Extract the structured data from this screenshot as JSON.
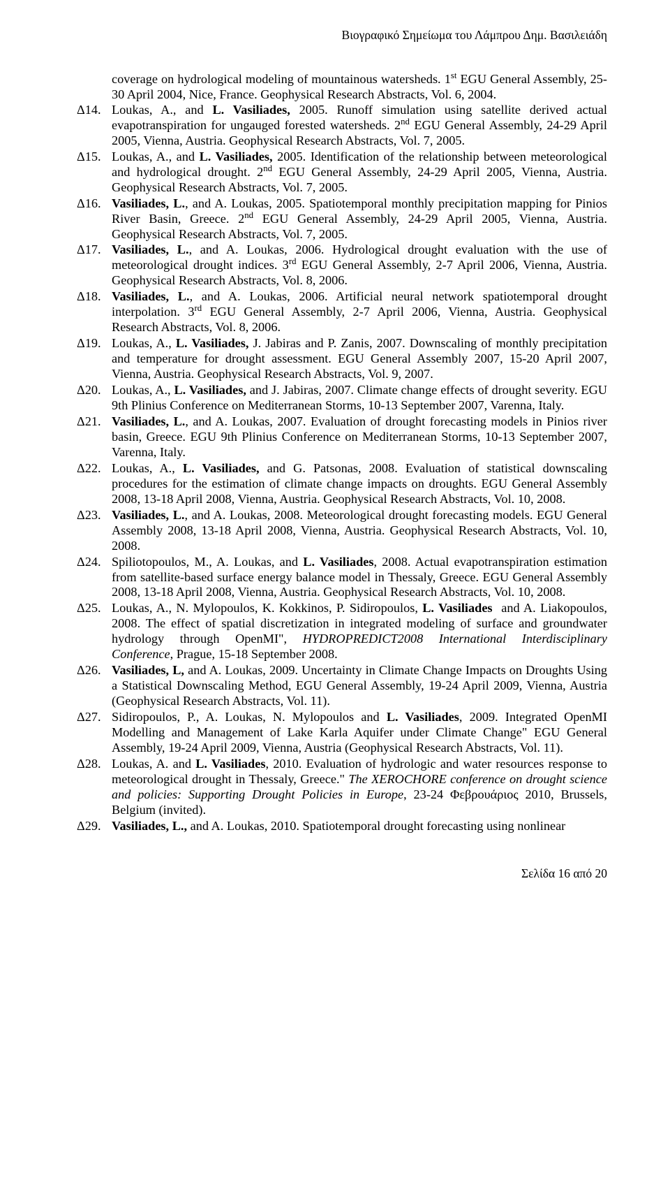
{
  "header": {
    "running_title": "Βιογραφικό Σημείωμα του Λάμπρου Δημ. Βασιλειάδη"
  },
  "continuation": {
    "body_html": "coverage on hydrological modeling of mountainous watersheds. 1<span class=\"sup\">st</span> EGU General Assembly, 25-30 April 2004, Nice, France. Geophysical Research Abstracts, Vol. 6, 2004."
  },
  "entries": [
    {
      "label": "Δ14.",
      "body_html": "Loukas, A., and <b>L. Vasiliades,</b> 2005. Runoff simulation using satellite derived actual evapotranspiration for ungauged forested watersheds. 2<span class=\"sup\">nd</span> EGU General Assembly, 24-29 April 2005, Vienna, Austria. Geophysical Research Abstracts, Vol. 7, 2005."
    },
    {
      "label": "Δ15.",
      "body_html": "Loukas, A., and <b>L. Vasiliades,</b> 2005. Identification of the relationship between meteorological and hydrological drought. 2<span class=\"sup\">nd</span> EGU General Assembly, 24-29 April 2005, Vienna, Austria. Geophysical Research Abstracts, Vol. 7, 2005."
    },
    {
      "label": "Δ16.",
      "body_html": "<b>Vasiliades, L.</b>, and A. Loukas, 2005. Spatiotemporal monthly precipitation mapping for Pinios River Basin, Greece. 2<span class=\"sup\">nd</span> EGU General Assembly, 24-29 April 2005, Vienna, Austria. Geophysical Research Abstracts, Vol. 7, 2005."
    },
    {
      "label": "Δ17.",
      "body_html": "<b>Vasiliades, L.</b>, and A. Loukas, 2006. Hydrological drought evaluation with the use of meteorological drought indices. 3<span class=\"sup\">rd</span> EGU General Assembly, 2-7 April 2006, Vienna, Austria. Geophysical Research Abstracts, Vol. 8, 2006."
    },
    {
      "label": "Δ18.",
      "body_html": "<b>Vasiliades, L.</b>, and A. Loukas, 2006. Artificial neural network spatiotemporal drought interpolation. 3<span class=\"sup\">rd</span> EGU General Assembly, 2-7 April 2006, Vienna, Austria. Geophysical Research Abstracts, Vol. 8, 2006."
    },
    {
      "label": "Δ19.",
      "body_html": "Loukas, A., <b>L. Vasiliades,</b> J. Jabiras and P. Zanis, 2007. Downscaling of monthly precipitation and temperature for drought assessment. EGU General Assembly 2007, 15-20 April 2007, Vienna, Austria. Geophysical Research Abstracts, Vol. 9, 2007."
    },
    {
      "label": "Δ20.",
      "body_html": "Loukas, A., <b>L. Vasiliades,</b> and J. Jabiras, 2007. Climate change effects of drought severity. EGU 9th Plinius Conference on Mediterranean Storms, 10-13 September 2007, Varenna, Italy."
    },
    {
      "label": "Δ21.",
      "body_html": "<b>Vasiliades, L.</b>, and A. Loukas, 2007. Evaluation of drought forecasting models in Pinios river basin, Greece. EGU 9th Plinius Conference on Mediterranean Storms, 10-13 September 2007, Varenna, Italy."
    },
    {
      "label": "Δ22.",
      "body_html": "Loukas, A., <b>L. Vasiliades,</b> and G. Patsonas, 2008. Evaluation of statistical downscaling procedures for the estimation of climate change impacts on droughts. EGU General Assembly 2008, 13-18 April 2008, Vienna, Austria. Geophysical Research Abstracts, Vol. 10, 2008."
    },
    {
      "label": "Δ23.",
      "body_html": "<b>Vasiliades, L.</b>, and A. Loukas, 2008. Meteorological drought forecasting models. EGU General Assembly 2008, 13-18 April 2008, Vienna, Austria. Geophysical Research Abstracts, Vol. 10, 2008."
    },
    {
      "label": "Δ24.",
      "body_html": "Spiliotopoulos, M., A. Loukas, and <b>L. Vasiliades</b>, 2008. Actual evapotranspiration estimation from satellite-based surface energy balance model in Thessaly, Greece. EGU General Assembly 2008, 13-18 April 2008, Vienna, Austria. Geophysical Research Abstracts, Vol. 10, 2008."
    },
    {
      "label": "Δ25.",
      "body_html": "Loukas, A., N. Mylopoulos, K. Kokkinos, P. Sidiropoulos, <b>L. Vasiliades</b> &nbsp;and A. Liakopoulos, 2008. The effect of spatial discretization in integrated modeling of surface and groundwater hydrology through OpenMI\", <i>HYDROPREDICT2008 International Interdisciplinary Conference</i>, Prague, 15-18 September 2008."
    },
    {
      "label": "Δ26.",
      "body_html": "<b>Vasiliades, L,</b> and A. Loukas, 2009. Uncertainty in Climate Change Impacts on Droughts Using a Statistical Downscaling Method, EGU General Assembly, 19-24 April 2009, Vienna, Austria (Geophysical Research Abstracts, Vol. 11)."
    },
    {
      "label": "Δ27.",
      "body_html": "Sidiropoulos, P., A. Loukas, N. Mylopoulos and <b>L. Vasiliades</b>, 2009. Integrated OpenMI Modelling and Management of Lake Karla Aquifer under Climate Change\" EGU General Assembly, 19-24 April 2009, Vienna, Austria (Geophysical Research Abstracts, Vol. 11)."
    },
    {
      "label": "Δ28.",
      "body_html": "Loukas, A. and <b>L. Vasiliades</b>, 2010. Evaluation of hydrologic and water resources response to meteorological drought in Thessaly, Greece.\" <i>The XEROCHORE conference on drought science and policies: Supporting Drought Policies in Europe</i>, 23-24 Φεβρουάριος 2010, Brussels, Belgium (invited)."
    },
    {
      "label": "Δ29.",
      "body_html": "<b>Vasiliades, L.,</b> and A. Loukas, 2010. Spatiotemporal drought forecasting using nonlinear"
    }
  ],
  "footer": {
    "text": "Σελίδα 16 από 20"
  }
}
